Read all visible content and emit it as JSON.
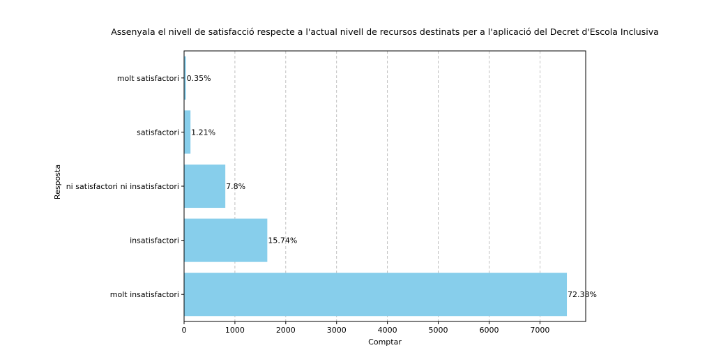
{
  "chart_data": {
    "type": "bar",
    "orientation": "horizontal",
    "title": "Assenyala el nivell de satisfacció respecte a l'actual nivell de recursos destinats per a l'aplicació del Decret d'Escola Inclusiva",
    "xlabel": "Comptar",
    "ylabel": "Resposta",
    "categories": [
      "molt insatisfactori",
      "insatisfactori",
      "ni satisfactori ni insatisfactori",
      "satisfactori",
      "molt satisfactori"
    ],
    "values": [
      7530,
      1637,
      811,
      126,
      36
    ],
    "data_labels": [
      "72.38%",
      "15.74%",
      "7.8%",
      "1.21%",
      "0.35%"
    ],
    "xlim": [
      0,
      7900
    ],
    "xticks": [
      0,
      1000,
      2000,
      3000,
      4000,
      5000,
      6000,
      7000
    ],
    "xtick_labels": [
      "0",
      "1000",
      "2000",
      "3000",
      "4000",
      "5000",
      "6000",
      "7000"
    ],
    "grid": "x-dashed",
    "bar_color": "#87ceeb",
    "legend": "none"
  }
}
